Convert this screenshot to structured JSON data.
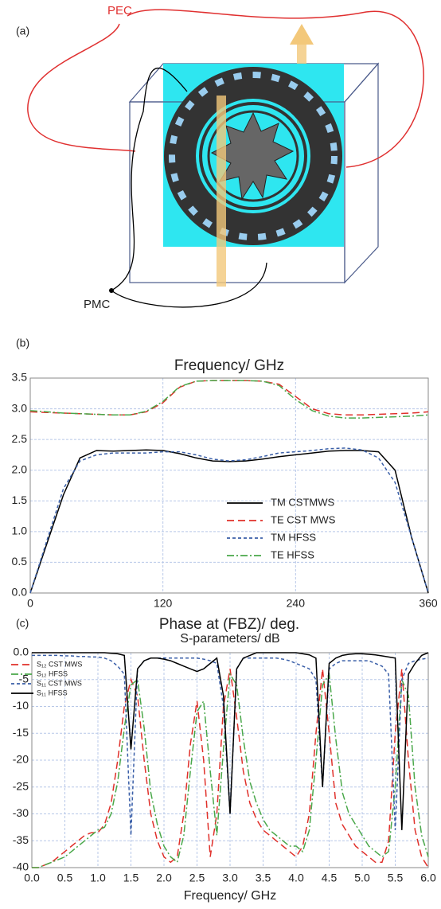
{
  "panel_a": {
    "label": "(a)",
    "pec": "PEC",
    "pmc": "PMC"
  },
  "chart_data": [
    {
      "type": "line",
      "panel": "(b)",
      "title": "Frequency/ GHz",
      "xlabel": "Phase at (FBZ)/ deg.",
      "x": [
        0,
        15,
        30,
        45,
        60,
        75,
        90,
        105,
        120,
        135,
        150,
        165,
        180,
        195,
        210,
        225,
        240,
        255,
        270,
        285,
        300,
        315,
        330,
        345,
        360
      ],
      "series": [
        {
          "name": "TM CSTMWS",
          "color": "#000000",
          "style": "solid",
          "values": [
            0,
            0.8,
            1.6,
            2.2,
            2.32,
            2.31,
            2.32,
            2.33,
            2.32,
            2.27,
            2.2,
            2.15,
            2.14,
            2.15,
            2.18,
            2.22,
            2.25,
            2.28,
            2.31,
            2.32,
            2.32,
            2.3,
            2.0,
            0.9,
            0
          ]
        },
        {
          "name": "TE CST MWS",
          "color": "#e0302a",
          "style": "longdash",
          "values": [
            2.95,
            2.94,
            2.93,
            2.92,
            2.91,
            2.9,
            2.9,
            2.95,
            3.1,
            3.35,
            3.45,
            3.46,
            3.46,
            3.46,
            3.45,
            3.4,
            3.2,
            3.0,
            2.92,
            2.9,
            2.9,
            2.91,
            2.92,
            2.93,
            2.95
          ]
        },
        {
          "name": "TM HFSS",
          "color": "#3a5fa8",
          "style": "dashed",
          "values": [
            0,
            0.85,
            1.7,
            2.15,
            2.25,
            2.28,
            2.28,
            2.28,
            2.3,
            2.3,
            2.25,
            2.18,
            2.15,
            2.17,
            2.22,
            2.28,
            2.3,
            2.32,
            2.35,
            2.36,
            2.33,
            2.2,
            1.8,
            0.9,
            0
          ]
        },
        {
          "name": "TE HFSS",
          "color": "#4aa84a",
          "style": "dashdot",
          "values": [
            2.97,
            2.95,
            2.93,
            2.92,
            2.91,
            2.9,
            2.9,
            2.96,
            3.12,
            3.36,
            3.45,
            3.46,
            3.46,
            3.46,
            3.45,
            3.38,
            3.15,
            2.97,
            2.88,
            2.85,
            2.85,
            2.86,
            2.87,
            2.88,
            2.9
          ]
        }
      ],
      "xlim": [
        0,
        360
      ],
      "xticks": [
        0,
        120,
        240,
        360
      ],
      "ylim": [
        0,
        3.5
      ],
      "yticks": [
        {
          "value": 0,
          "label": "0.0"
        },
        0.5,
        {
          "value": 1,
          "label": "1.0"
        },
        1.5,
        {
          "value": 2,
          "label": "2.0"
        },
        2.5,
        {
          "value": 3,
          "label": "3.0"
        },
        3.5
      ],
      "grid": true,
      "legend": "lower-right"
    },
    {
      "type": "line",
      "panel": "(c)",
      "title": "S-parameters/ dB",
      "xlabel": "Frequency/ GHz",
      "x": [
        0,
        0.1,
        0.2,
        0.3,
        0.4,
        0.5,
        0.6,
        0.7,
        0.8,
        0.9,
        1.0,
        1.1,
        1.2,
        1.3,
        1.4,
        1.5,
        1.6,
        1.7,
        1.8,
        1.9,
        2.0,
        2.1,
        2.2,
        2.3,
        2.4,
        2.5,
        2.6,
        2.7,
        2.8,
        2.9,
        3.0,
        3.1,
        3.2,
        3.3,
        3.4,
        3.5,
        3.6,
        3.7,
        3.8,
        3.9,
        4.0,
        4.1,
        4.2,
        4.3,
        4.4,
        4.5,
        4.6,
        4.7,
        4.8,
        4.9,
        5.0,
        5.1,
        5.2,
        5.3,
        5.4,
        5.5,
        5.6,
        5.7,
        5.8,
        5.9,
        6.0
      ],
      "series": [
        {
          "name": "S₁₂ CST MWS",
          "color": "#e0302a",
          "style": "longdash",
          "values": [
            -40,
            -40,
            -39.5,
            -39,
            -38,
            -37,
            -36,
            -35,
            -34,
            -33.5,
            -33.5,
            -32,
            -28,
            -20,
            -10,
            -5,
            -8,
            -20,
            -30,
            -35,
            -38,
            -39,
            -38,
            -30,
            -17,
            -9,
            -20,
            -38,
            -30,
            -10,
            -3,
            -12,
            -22,
            -28,
            -31,
            -33,
            -34,
            -35,
            -36,
            -37,
            -38,
            -36,
            -30,
            -15,
            -3,
            -15,
            -28,
            -32,
            -34,
            -36,
            -37,
            -38,
            -39,
            -39,
            -35,
            -15,
            -3,
            -20,
            -33,
            -38,
            -40
          ]
        },
        {
          "name": "S₁₂ HFSS",
          "color": "#4aa84a",
          "style": "dashdot",
          "values": [
            -40,
            -40,
            -39.5,
            -39,
            -38.5,
            -38,
            -37,
            -36,
            -35,
            -34,
            -33,
            -32.5,
            -30,
            -24,
            -14,
            -6,
            -5,
            -14,
            -26,
            -32,
            -36,
            -38,
            -39,
            -34,
            -22,
            -11,
            -9,
            -22,
            -34,
            -18,
            -4,
            -6,
            -16,
            -24,
            -28,
            -31,
            -33,
            -34,
            -35,
            -36,
            -36,
            -37,
            -33,
            -20,
            -6,
            -4,
            -16,
            -26,
            -30,
            -32,
            -34,
            -36,
            -37,
            -38,
            -37,
            -25,
            -5,
            -8,
            -25,
            -34,
            -38
          ]
        },
        {
          "name": "S₁₁ CST MWS",
          "color": "#3a5fa8",
          "style": "dashed",
          "values": [
            -0.5,
            -0.5,
            -0.5,
            -0.5,
            -0.5,
            -0.6,
            -0.6,
            -0.7,
            -0.7,
            -0.8,
            -0.8,
            -1,
            -1.5,
            -2.5,
            -4,
            -34,
            -3,
            -1.5,
            -1,
            -1,
            -1,
            -1,
            -1,
            -1,
            -1,
            -1,
            -1.2,
            -1.5,
            -2,
            -10,
            -30,
            -3,
            -1,
            -1,
            -1,
            -1,
            -1,
            -1,
            -1.2,
            -1.5,
            -2,
            -2.5,
            -3,
            -5,
            -25,
            -3,
            -2,
            -1.5,
            -1.5,
            -1.5,
            -1.5,
            -1.5,
            -2,
            -2.5,
            -4,
            -33,
            -5,
            -2,
            -1.5,
            -1.2,
            -1
          ]
        },
        {
          "name": "S₁₁ HFSS",
          "color": "#000000",
          "style": "solid",
          "values": [
            0,
            0,
            0,
            0,
            0,
            0,
            0,
            0,
            0,
            0,
            0,
            0,
            -0.1,
            -0.2,
            -0.5,
            -18,
            -3,
            -1.5,
            -1,
            -1,
            -1.2,
            -1.5,
            -2,
            -2.5,
            -3,
            -3.5,
            -3,
            -2,
            -1,
            -8,
            -30,
            -3,
            -1,
            -0.5,
            0,
            0,
            0,
            0,
            0,
            0,
            0,
            -0.2,
            -0.4,
            -1,
            -25,
            -2,
            -1,
            -0.5,
            -0.3,
            -0.2,
            -0.2,
            -0.3,
            -0.4,
            -0.6,
            -0.8,
            -1,
            -33,
            -4,
            -2,
            -0.5,
            0
          ]
        }
      ],
      "xlim": [
        0,
        6
      ],
      "xticks": [
        {
          "value": 0,
          "label": "0.0"
        },
        0.5,
        {
          "value": 1,
          "label": "1.0"
        },
        1.5,
        {
          "value": 2,
          "label": "2.0"
        },
        2.5,
        {
          "value": 3,
          "label": "3.0"
        },
        3.5,
        {
          "value": 4,
          "label": "4.0"
        },
        4.5,
        {
          "value": 5,
          "label": "5.0"
        },
        5.5,
        {
          "value": 6,
          "label": "6.0"
        }
      ],
      "ylim": [
        -40,
        0
      ],
      "yticks": [
        {
          "value": 0,
          "label": "0.0"
        },
        -5,
        -10,
        -15,
        -20,
        -25,
        -30,
        -35,
        -40
      ],
      "grid": true,
      "legend": "upper-left"
    }
  ]
}
